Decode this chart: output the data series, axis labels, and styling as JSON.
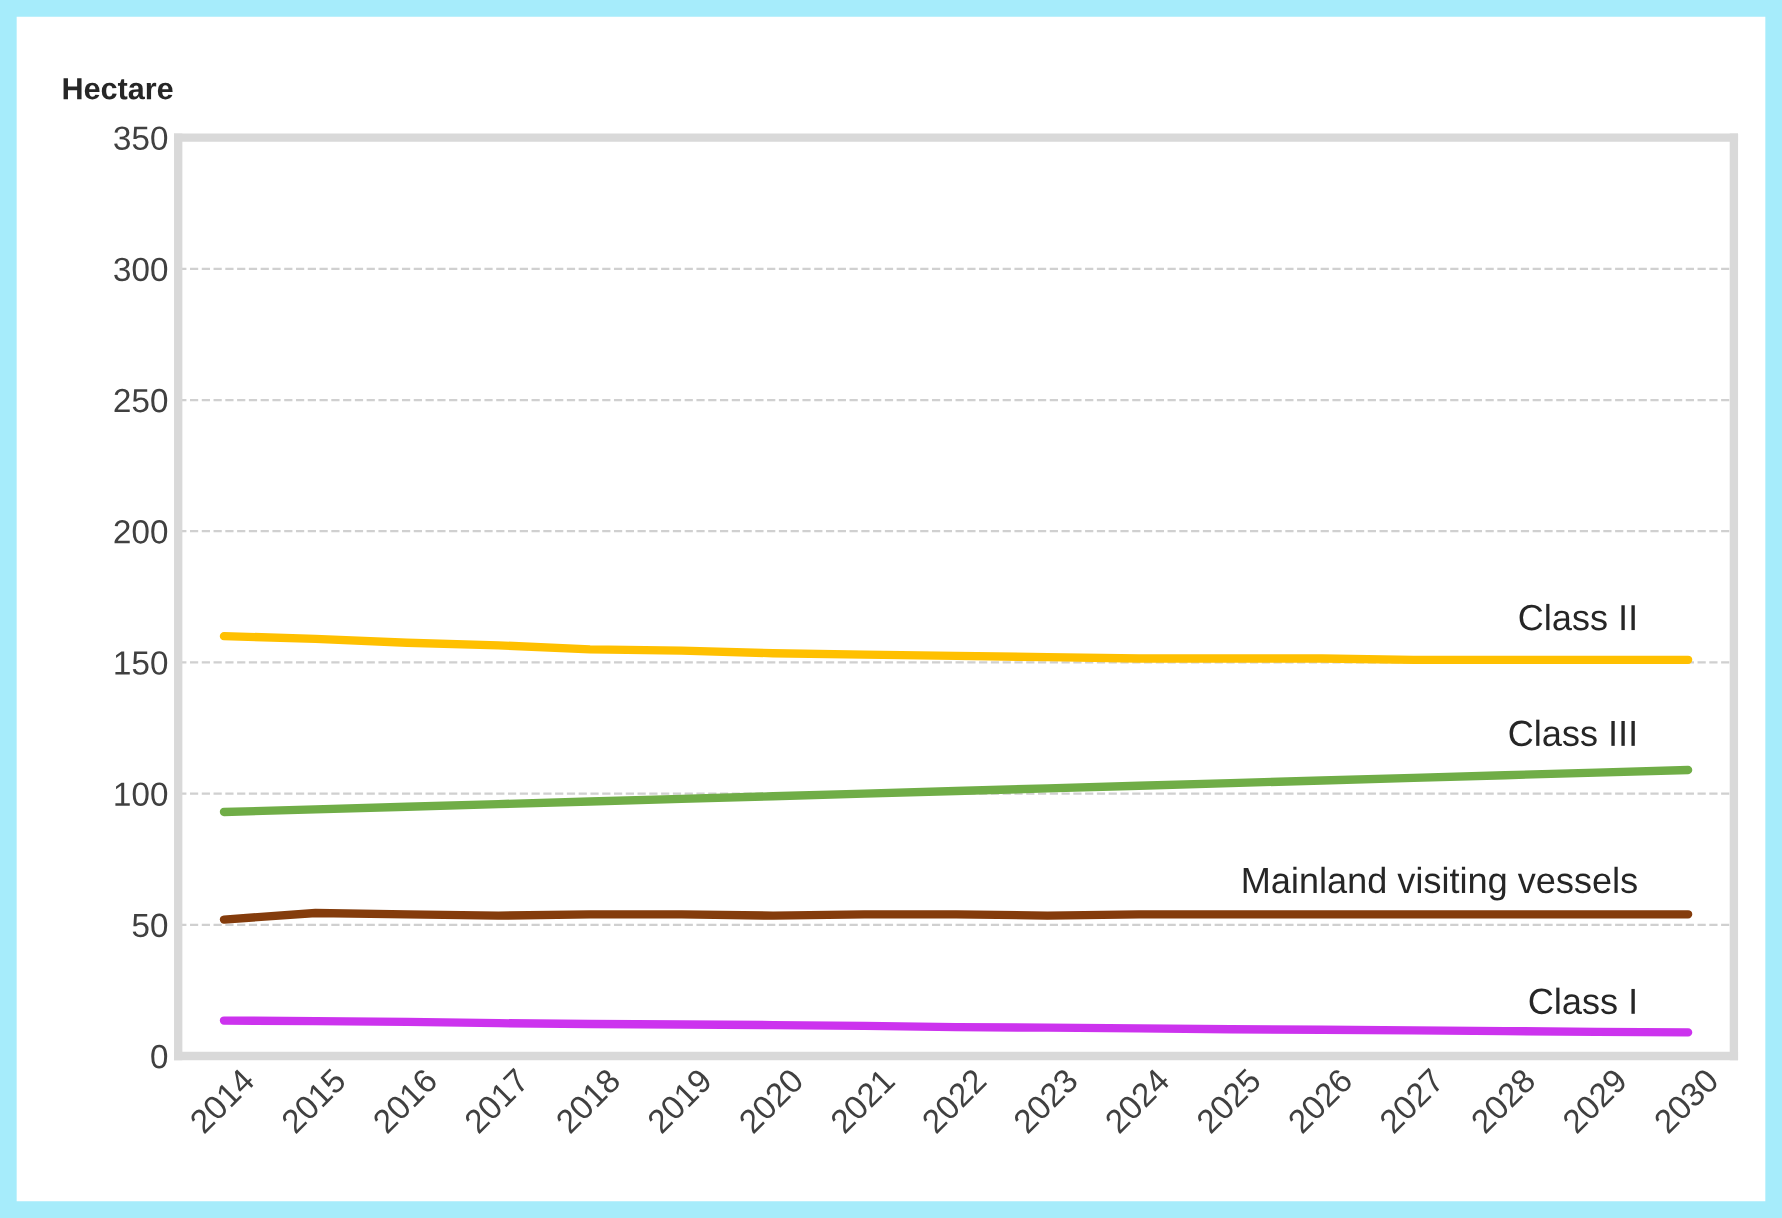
{
  "chart_data": {
    "type": "line",
    "ylabel": "Hectare",
    "x": [
      2014,
      2015,
      2016,
      2017,
      2018,
      2019,
      2020,
      2021,
      2022,
      2023,
      2024,
      2025,
      2026,
      2027,
      2028,
      2029,
      2030
    ],
    "xlim": [
      2013.5,
      2030.5
    ],
    "xticks": [
      2014,
      2015,
      2016,
      2017,
      2018,
      2019,
      2020,
      2021,
      2022,
      2023,
      2024,
      2025,
      2026,
      2027,
      2028,
      2029,
      2030
    ],
    "ylim": [
      0,
      350
    ],
    "yticks": [
      0,
      50,
      100,
      150,
      200,
      250,
      300,
      350
    ],
    "grid": "y",
    "legend": false,
    "marker": "none",
    "line_style": "solid",
    "series": [
      {
        "name": "Class II",
        "color": "#ffc000",
        "values": [
          160,
          159,
          157.5,
          156.5,
          155,
          154.5,
          153.5,
          153,
          152.5,
          152,
          151.5,
          151.5,
          151.5,
          151,
          151,
          151,
          151
        ]
      },
      {
        "name": "Class III",
        "color": "#70ad47",
        "values": [
          93,
          94,
          95,
          96,
          97,
          98,
          99,
          100,
          101,
          102,
          103,
          104,
          105,
          106,
          107,
          108,
          109
        ]
      },
      {
        "name": "Mainland visiting vessels",
        "color": "#843c0c",
        "values": [
          52,
          54.5,
          54,
          53.5,
          54,
          54,
          53.5,
          54,
          54,
          53.5,
          54,
          54,
          54,
          54,
          54,
          54,
          54
        ]
      },
      {
        "name": "Class I",
        "color": "#cc33ee",
        "values": [
          13.5,
          13.3,
          13,
          12.5,
          12.2,
          12,
          11.8,
          11.5,
          11,
          10.8,
          10.5,
          10.2,
          10,
          9.8,
          9.5,
          9.2,
          9
        ]
      }
    ]
  }
}
